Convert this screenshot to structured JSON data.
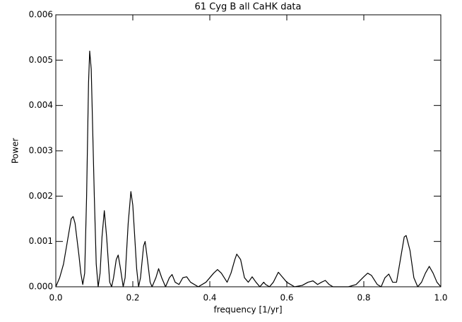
{
  "chart_data": {
    "type": "line",
    "title": "61 Cyg B all CaHK data",
    "xlabel": "frequency [1/yr]",
    "ylabel": "Power",
    "color": "#000000",
    "xlim": [
      0,
      1
    ],
    "ylim": [
      0,
      0.006
    ],
    "xticks": [
      {
        "value": 0,
        "label": "0.0"
      },
      0.2,
      0.4,
      0.6,
      0.8,
      {
        "value": 1,
        "label": "1.0"
      }
    ],
    "yticks": [
      {
        "value": 0,
        "label": "0.000"
      },
      {
        "value": 0.001,
        "label": "0.001"
      },
      {
        "value": 0.002,
        "label": "0.002"
      },
      {
        "value": 0.003,
        "label": "0.003"
      },
      {
        "value": 0.004,
        "label": "0.004"
      },
      {
        "value": 0.005,
        "label": "0.005"
      },
      {
        "value": 0.006,
        "label": "0.006"
      }
    ],
    "x": [
      0,
      0.01,
      0.02,
      0.03,
      0.04,
      0.045,
      0.05,
      0.06,
      0.065,
      0.07,
      0.075,
      0.08,
      0.085,
      0.088,
      0.092,
      0.1,
      0.105,
      0.11,
      0.115,
      0.12,
      0.126,
      0.132,
      0.14,
      0.145,
      0.15,
      0.157,
      0.162,
      0.168,
      0.175,
      0.18,
      0.188,
      0.195,
      0.2,
      0.21,
      0.215,
      0.22,
      0.228,
      0.232,
      0.238,
      0.245,
      0.25,
      0.26,
      0.267,
      0.275,
      0.285,
      0.295,
      0.302,
      0.31,
      0.32,
      0.33,
      0.34,
      0.35,
      0.37,
      0.39,
      0.41,
      0.42,
      0.43,
      0.445,
      0.455,
      0.465,
      0.47,
      0.48,
      0.49,
      0.5,
      0.51,
      0.52,
      0.53,
      0.54,
      0.545,
      0.555,
      0.565,
      0.578,
      0.59,
      0.6,
      0.62,
      0.64,
      0.655,
      0.668,
      0.68,
      0.69,
      0.7,
      0.71,
      0.72,
      0.76,
      0.78,
      0.8,
      0.81,
      0.82,
      0.835,
      0.845,
      0.855,
      0.865,
      0.875,
      0.885,
      0.895,
      0.905,
      0.91,
      0.92,
      0.93,
      0.94,
      0.95,
      0.96,
      0.97,
      0.98,
      0.99,
      1
    ],
    "values": [
      0,
      0.0002,
      0.0005,
      0.001,
      0.0015,
      0.00155,
      0.0014,
      0.0007,
      0.0003,
      5e-05,
      0.0003,
      0.002,
      0.0045,
      0.0052,
      0.0048,
      0.002,
      0.0005,
      0,
      0.0003,
      0.0011,
      0.00168,
      0.0011,
      0.0001,
      0,
      0.0002,
      0.0006,
      0.0007,
      0.0004,
      0,
      0.0002,
      0.0014,
      0.0021,
      0.0018,
      0.0004,
      0,
      0.0002,
      0.0009,
      0.001,
      0.0006,
      0.0001,
      0,
      0.0002,
      0.0004,
      0.0002,
      0,
      0.0002,
      0.00027,
      0.0001,
      5e-05,
      0.0002,
      0.00022,
      0.0001,
      0,
      0.0001,
      0.0003,
      0.00038,
      0.0003,
      0.0001,
      0.0003,
      0.0006,
      0.00072,
      0.0006,
      0.0002,
      0.0001,
      0.00022,
      0.0001,
      0,
      0.0001,
      5e-05,
      0,
      0.0001,
      0.00032,
      0.0002,
      0.0001,
      0,
      3e-05,
      0.0001,
      0.00013,
      5e-05,
      0.0001,
      0.00014,
      5e-05,
      0,
      0,
      5e-05,
      0.00022,
      0.0003,
      0.00025,
      5e-05,
      0,
      0.0002,
      0.00028,
      0.0001,
      0.0001,
      0.0006,
      0.0011,
      0.00113,
      0.0008,
      0.0002,
      0,
      0.0001,
      0.0003,
      0.00045,
      0.0003,
      0.0001,
      0
    ]
  }
}
